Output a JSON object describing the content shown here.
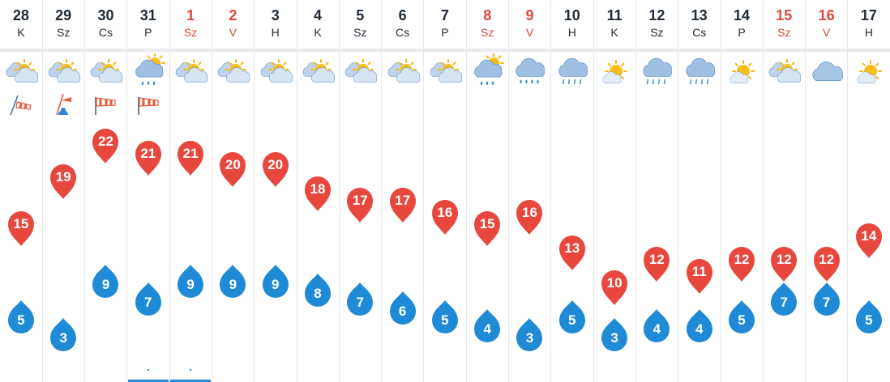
{
  "colors": {
    "max": "#e8473d",
    "min": "#1f8ad6",
    "weekend": "#e0463b"
  },
  "days": [
    {
      "date": "28",
      "weekday": "K",
      "weekend": false,
      "icon": "partly-cloudy-icon",
      "wind": "windsock-small-icon",
      "max": 15,
      "min": 5
    },
    {
      "date": "29",
      "weekday": "Sz",
      "weekend": false,
      "icon": "partly-cloudy-icon",
      "wind": "wind-warning-icon",
      "max": 19,
      "min": 3
    },
    {
      "date": "30",
      "weekday": "Cs",
      "weekend": false,
      "icon": "partly-cloudy-icon",
      "wind": "windsock-icon",
      "max": 22,
      "min": 9
    },
    {
      "date": "31",
      "weekday": "P",
      "weekend": false,
      "icon": "sun-cloud-rain-icon",
      "wind": "windsock-icon",
      "max": 21,
      "min": 7,
      "bar": true
    },
    {
      "date": "1",
      "weekday": "Sz",
      "weekend": true,
      "icon": "partly-cloudy-icon",
      "max": 21,
      "min": 9,
      "bar": true
    },
    {
      "date": "2",
      "weekday": "V",
      "weekend": true,
      "icon": "partly-cloudy-icon",
      "max": 20,
      "min": 9
    },
    {
      "date": "3",
      "weekday": "H",
      "weekend": false,
      "icon": "partly-cloudy-icon",
      "max": 20,
      "min": 9
    },
    {
      "date": "4",
      "weekday": "K",
      "weekend": false,
      "icon": "partly-cloudy-icon",
      "max": 18,
      "min": 8
    },
    {
      "date": "5",
      "weekday": "Sz",
      "weekend": false,
      "icon": "partly-cloudy-icon",
      "max": 17,
      "min": 7
    },
    {
      "date": "6",
      "weekday": "Cs",
      "weekend": false,
      "icon": "partly-cloudy-icon",
      "max": 17,
      "min": 6
    },
    {
      "date": "7",
      "weekday": "P",
      "weekend": false,
      "icon": "partly-cloudy-icon",
      "max": 16,
      "min": 5
    },
    {
      "date": "8",
      "weekday": "Sz",
      "weekend": true,
      "icon": "sun-cloud-rain-icon",
      "max": 15,
      "min": 4
    },
    {
      "date": "9",
      "weekday": "V",
      "weekend": true,
      "icon": "rain-icon",
      "max": 16,
      "min": 3
    },
    {
      "date": "10",
      "weekday": "H",
      "weekend": false,
      "icon": "showers-icon",
      "max": 13,
      "min": 5
    },
    {
      "date": "11",
      "weekday": "K",
      "weekend": false,
      "icon": "sun-small-cloud-icon",
      "max": 10,
      "min": 3
    },
    {
      "date": "12",
      "weekday": "Sz",
      "weekend": false,
      "icon": "showers-icon",
      "max": 12,
      "min": 4
    },
    {
      "date": "13",
      "weekday": "Cs",
      "weekend": false,
      "icon": "showers-icon",
      "max": 11,
      "min": 4
    },
    {
      "date": "14",
      "weekday": "P",
      "weekend": false,
      "icon": "sun-small-cloud-icon",
      "max": 12,
      "min": 5
    },
    {
      "date": "15",
      "weekday": "Sz",
      "weekend": true,
      "icon": "partly-cloudy-icon",
      "max": 12,
      "min": 7
    },
    {
      "date": "16",
      "weekday": "V",
      "weekend": true,
      "icon": "cloud-icon",
      "max": 12,
      "min": 7
    },
    {
      "date": "17",
      "weekday": "H",
      "weekend": false,
      "icon": "sun-small-cloud-icon",
      "max": 14,
      "min": 5
    }
  ]
}
